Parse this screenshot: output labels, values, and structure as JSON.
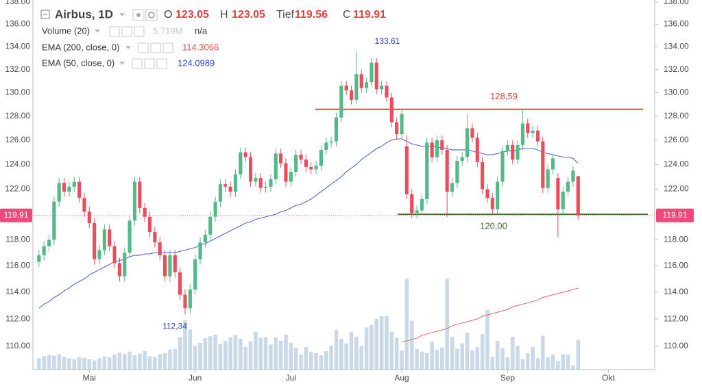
{
  "chart_data": {
    "type": "candlestick",
    "title": "Airbus, 1D",
    "ohlc_labels": [
      "O",
      "H",
      "Tief",
      "C"
    ],
    "up_color": "#53b987",
    "down_color": "#eb4d5c",
    "open": [
      116.3,
      116.8,
      117.5,
      118.0,
      121.0,
      122.5,
      121.8,
      122.2,
      122.6,
      121.3,
      120.2,
      119.3,
      116.5,
      117.2,
      118.8,
      117.5,
      116.2,
      115.2,
      117.0,
      119.5,
      122.6,
      120.5,
      119.8,
      118.6,
      117.8,
      116.8,
      115.2,
      116.8,
      115.5,
      113.8,
      112.8,
      114.2,
      116.5,
      117.8,
      118.4,
      119.8,
      121.0,
      122.4,
      122.2,
      121.8,
      123.2,
      125.0,
      124.6,
      122.6,
      122.9,
      122.1,
      122.2,
      122.8,
      124.9,
      124.1,
      122.6,
      123.4,
      124.8,
      124.4,
      123.8,
      123.6,
      123.9,
      125.2,
      125.8,
      125.9,
      127.9,
      130.6,
      130.2,
      129.4,
      131.6,
      130.4,
      130.9,
      132.6,
      130.3,
      130.6,
      129.6,
      127.5,
      126.5,
      125.5,
      121.6,
      120.1,
      120.3,
      121.2,
      125.8,
      124.6,
      126.0,
      125.2,
      121.8,
      122.5,
      124.3,
      124.6,
      127.0,
      126.2,
      124.2,
      122.0,
      121.3,
      120.4,
      122.6,
      125.1,
      125.6,
      124.4,
      125.6,
      127.4,
      126.6,
      126.8,
      125.9,
      122.1,
      123.6,
      122.9,
      120.4,
      121.8,
      122.6,
      123.05
    ],
    "high": [
      117.2,
      117.9,
      118.4,
      121.4,
      122.9,
      122.9,
      122.6,
      123.0,
      123.0,
      121.7,
      120.6,
      119.7,
      117.6,
      119.2,
      119.2,
      117.9,
      116.6,
      117.4,
      119.9,
      123.0,
      123.0,
      120.9,
      120.2,
      119.0,
      118.2,
      117.2,
      117.2,
      117.2,
      115.9,
      114.2,
      114.6,
      116.9,
      118.2,
      118.8,
      120.2,
      121.4,
      122.8,
      122.8,
      122.6,
      123.6,
      125.4,
      125.4,
      125.0,
      123.3,
      123.3,
      122.6,
      123.2,
      125.3,
      125.3,
      124.5,
      123.8,
      125.2,
      125.2,
      124.8,
      124.2,
      124.3,
      125.6,
      126.2,
      126.3,
      128.3,
      131.0,
      131.0,
      130.6,
      133.61,
      132.0,
      131.3,
      133.0,
      133.0,
      131.0,
      131.0,
      130.0,
      127.9,
      128.6,
      126.4,
      122.0,
      120.7,
      121.6,
      126.2,
      126.2,
      126.4,
      126.4,
      125.6,
      122.9,
      124.7,
      125.0,
      128.2,
      127.4,
      126.6,
      124.6,
      122.4,
      121.7,
      123.0,
      125.5,
      126.0,
      126.0,
      126.0,
      128.6,
      127.8,
      127.2,
      127.2,
      126.3,
      124.0,
      124.9,
      123.3,
      122.2,
      123.0,
      123.9,
      123.05
    ],
    "low": [
      115.9,
      116.4,
      117.1,
      117.6,
      120.6,
      121.4,
      121.4,
      121.8,
      120.9,
      119.8,
      118.9,
      116.1,
      116.1,
      116.8,
      117.1,
      115.8,
      114.8,
      114.8,
      116.6,
      119.1,
      120.1,
      119.4,
      118.2,
      117.4,
      116.4,
      114.8,
      114.8,
      115.1,
      113.4,
      112.34,
      112.4,
      113.8,
      116.1,
      117.4,
      118.0,
      119.4,
      120.6,
      121.8,
      121.4,
      121.4,
      122.8,
      124.2,
      122.2,
      122.2,
      121.7,
      121.7,
      121.8,
      122.4,
      123.7,
      122.2,
      122.2,
      123.0,
      124.0,
      123.4,
      123.2,
      123.2,
      123.5,
      124.8,
      125.4,
      125.5,
      127.5,
      129.8,
      129.0,
      129.0,
      130.0,
      130.0,
      130.5,
      129.9,
      129.9,
      129.2,
      127.1,
      126.1,
      126.1,
      121.2,
      119.7,
      119.7,
      119.9,
      120.8,
      124.2,
      124.2,
      124.8,
      119.8,
      121.4,
      122.1,
      123.9,
      124.2,
      125.8,
      123.8,
      121.6,
      120.9,
      120.0,
      120.0,
      122.2,
      124.7,
      124.0,
      124.0,
      125.2,
      126.2,
      126.2,
      125.5,
      121.7,
      121.7,
      123.2,
      118.2,
      120.0,
      121.4,
      122.2,
      119.56
    ],
    "close": [
      116.8,
      117.5,
      118.0,
      121.0,
      122.5,
      121.8,
      122.2,
      122.6,
      121.3,
      120.2,
      119.3,
      116.5,
      117.2,
      118.8,
      117.5,
      116.2,
      115.2,
      117.0,
      119.5,
      122.6,
      120.5,
      119.8,
      118.6,
      117.8,
      116.8,
      115.2,
      116.8,
      115.5,
      113.8,
      112.8,
      114.2,
      116.5,
      117.8,
      118.4,
      119.8,
      121.0,
      122.4,
      122.2,
      121.8,
      123.2,
      125.0,
      124.6,
      122.6,
      122.9,
      122.1,
      122.2,
      122.8,
      124.9,
      124.1,
      122.6,
      123.4,
      124.8,
      124.4,
      123.8,
      123.6,
      123.9,
      125.2,
      125.8,
      125.9,
      127.9,
      130.6,
      130.2,
      129.4,
      131.6,
      130.4,
      130.9,
      132.6,
      130.3,
      130.6,
      129.6,
      127.5,
      126.5,
      128.2,
      121.6,
      120.1,
      120.3,
      121.2,
      125.8,
      124.6,
      126.0,
      125.2,
      121.8,
      122.5,
      124.3,
      124.6,
      127.0,
      126.2,
      124.2,
      122.0,
      121.3,
      120.4,
      122.6,
      125.1,
      125.6,
      124.4,
      125.6,
      127.4,
      126.6,
      126.8,
      125.9,
      122.1,
      123.6,
      124.5,
      120.4,
      121.8,
      122.6,
      123.5,
      119.91
    ],
    "volume": {
      "name": "Volume (20)",
      "color": "#c9d9e8",
      "value_label": "5.719M",
      "status": "n/a",
      "values": [
        2.2,
        2.6,
        2.8,
        2.7,
        3.0,
        2.5,
        2.2,
        2.0,
        2.4,
        2.3,
        2.0,
        1.8,
        2.2,
        2.6,
        2.4,
        2.9,
        3.3,
        3.0,
        3.5,
        2.8,
        3.1,
        3.6,
        2.6,
        2.4,
        3.0,
        3.2,
        3.9,
        4.0,
        6.3,
        9.6,
        7.8,
        4.6,
        5.2,
        6.1,
        6.5,
        6.8,
        5.0,
        5.6,
        6.3,
        6.7,
        6.0,
        4.4,
        5.5,
        7.4,
        6.2,
        6.3,
        4.9,
        6.3,
        5.6,
        6.8,
        5.2,
        4.3,
        2.9,
        4.4,
        3.4,
        3.2,
        2.8,
        3.6,
        4.7,
        7.7,
        6.0,
        5.1,
        7.3,
        6.4,
        4.6,
        8.2,
        8.7,
        9.9,
        10.4,
        10.4,
        7.4,
        6.2,
        3.7,
        17.7,
        9.5,
        4.0,
        3.5,
        3.2,
        5.4,
        3.8,
        4.3,
        17.7,
        6.4,
        4.1,
        5.1,
        7.2,
        3.8,
        4.4,
        6.9,
        11.6,
        2.5,
        5.6,
        4.2,
        2.4,
        6.4,
        4.6,
        2.0,
        3.2,
        4.4,
        2.2,
        6.6,
        2.4,
        2.9,
        1.6,
        3.0,
        2.9,
        0.8,
        5.719
      ]
    },
    "series": [
      {
        "name": "EMA (200, close, 0)",
        "color": "#e2504a",
        "values": [
          null,
          null,
          null,
          null,
          null,
          null,
          null,
          null,
          null,
          null,
          null,
          null,
          null,
          null,
          null,
          null,
          null,
          null,
          null,
          null,
          null,
          null,
          null,
          null,
          null,
          null,
          null,
          null,
          null,
          null,
          null,
          null,
          null,
          null,
          null,
          null,
          null,
          null,
          null,
          null,
          null,
          null,
          null,
          null,
          null,
          null,
          null,
          null,
          null,
          null,
          null,
          null,
          null,
          null,
          null,
          null,
          null,
          null,
          null,
          null,
          null,
          null,
          null,
          null,
          null,
          null,
          null,
          null,
          null,
          null,
          null,
          null,
          110.3,
          110.4,
          110.5,
          110.6,
          110.8,
          110.9,
          111.0,
          111.1,
          111.2,
          111.3,
          111.5,
          111.6,
          111.7,
          111.8,
          111.9,
          112.0,
          112.2,
          112.3,
          112.4,
          112.5,
          112.6,
          112.7,
          112.9,
          113.0,
          113.1,
          113.2,
          113.3,
          113.4,
          113.6,
          113.7,
          113.8,
          113.9,
          114.0,
          114.1,
          114.2,
          114.3066
        ]
      },
      {
        "name": "EMA (50, close, 0)",
        "color": "#2f45d8",
        "values": [
          112.8,
          113.1,
          113.3,
          113.6,
          113.8,
          114.1,
          114.3,
          114.6,
          114.8,
          115.0,
          115.3,
          115.5,
          115.7,
          115.9,
          116.1,
          116.3,
          116.4,
          116.5,
          116.7,
          116.8,
          116.8,
          116.9,
          116.9,
          117.0,
          117.0,
          117.0,
          117.0,
          117.0,
          117.1,
          117.2,
          117.3,
          117.4,
          117.6,
          117.7,
          117.9,
          118.1,
          118.3,
          118.5,
          118.7,
          118.9,
          119.1,
          119.3,
          119.4,
          119.6,
          119.7,
          119.8,
          119.9,
          120.0,
          120.2,
          120.3,
          120.5,
          120.7,
          120.8,
          121.0,
          121.2,
          121.5,
          121.8,
          122.1,
          122.4,
          122.7,
          123.0,
          123.4,
          123.7,
          124.0,
          124.4,
          124.7,
          125.0,
          125.3,
          125.5,
          125.8,
          126.0,
          126.1,
          126.1,
          125.9,
          125.7,
          125.6,
          125.5,
          125.5,
          125.5,
          125.4,
          125.4,
          125.3,
          125.2,
          125.2,
          125.2,
          125.2,
          125.1,
          125.0,
          124.9,
          124.8,
          124.8,
          124.9,
          125.0,
          125.1,
          125.1,
          125.2,
          125.3,
          125.3,
          125.3,
          125.2,
          125.0,
          124.9,
          124.8,
          124.7,
          124.6,
          124.6,
          124.5,
          124.0989
        ]
      }
    ],
    "annotations": [
      {
        "label": "133,61",
        "value": 133.61,
        "color": "#2a3ed6"
      },
      {
        "label": "112,34",
        "value": 112.34,
        "color": "#2a3ed6"
      }
    ],
    "hlines": [
      {
        "label": "128,59",
        "value": 128.59,
        "color": "#e8433a"
      },
      {
        "label": "120,00",
        "value": 120,
        "color": "#4a6b2e"
      }
    ],
    "price_color": "#f0487a",
    "log_scale": true,
    "grid": false,
    "ylim": [
      108.33,
      138.19
    ],
    "yticks": [
      {
        "value": 110,
        "label": "110.00"
      },
      {
        "value": 112,
        "label": "112.00"
      },
      {
        "value": 114,
        "label": "114.00"
      },
      {
        "value": 116,
        "label": "116.00"
      },
      {
        "value": 118,
        "label": "118.00"
      },
      {
        "value": 120,
        "label": "120.00"
      },
      {
        "value": 122,
        "label": "122.00"
      },
      {
        "value": 124,
        "label": "124.00"
      },
      {
        "value": 126,
        "label": "126.00"
      },
      {
        "value": 128,
        "label": "128.00"
      },
      {
        "value": 130,
        "label": "130.00"
      },
      {
        "value": 132,
        "label": "132.00"
      },
      {
        "value": 134,
        "label": "134.00"
      },
      {
        "value": 136,
        "label": "136.00"
      },
      {
        "value": 138,
        "label": "138.00"
      }
    ],
    "xlim": [
      -1.2,
      122.2
    ],
    "xticks": [
      {
        "value": 10,
        "label": "Mai"
      },
      {
        "value": 31,
        "label": "Jun"
      },
      {
        "value": 50,
        "label": "Jul"
      },
      {
        "value": 72,
        "label": "Aug"
      },
      {
        "value": 93,
        "label": "Sep"
      },
      {
        "value": 113,
        "label": "Okt"
      }
    ]
  }
}
